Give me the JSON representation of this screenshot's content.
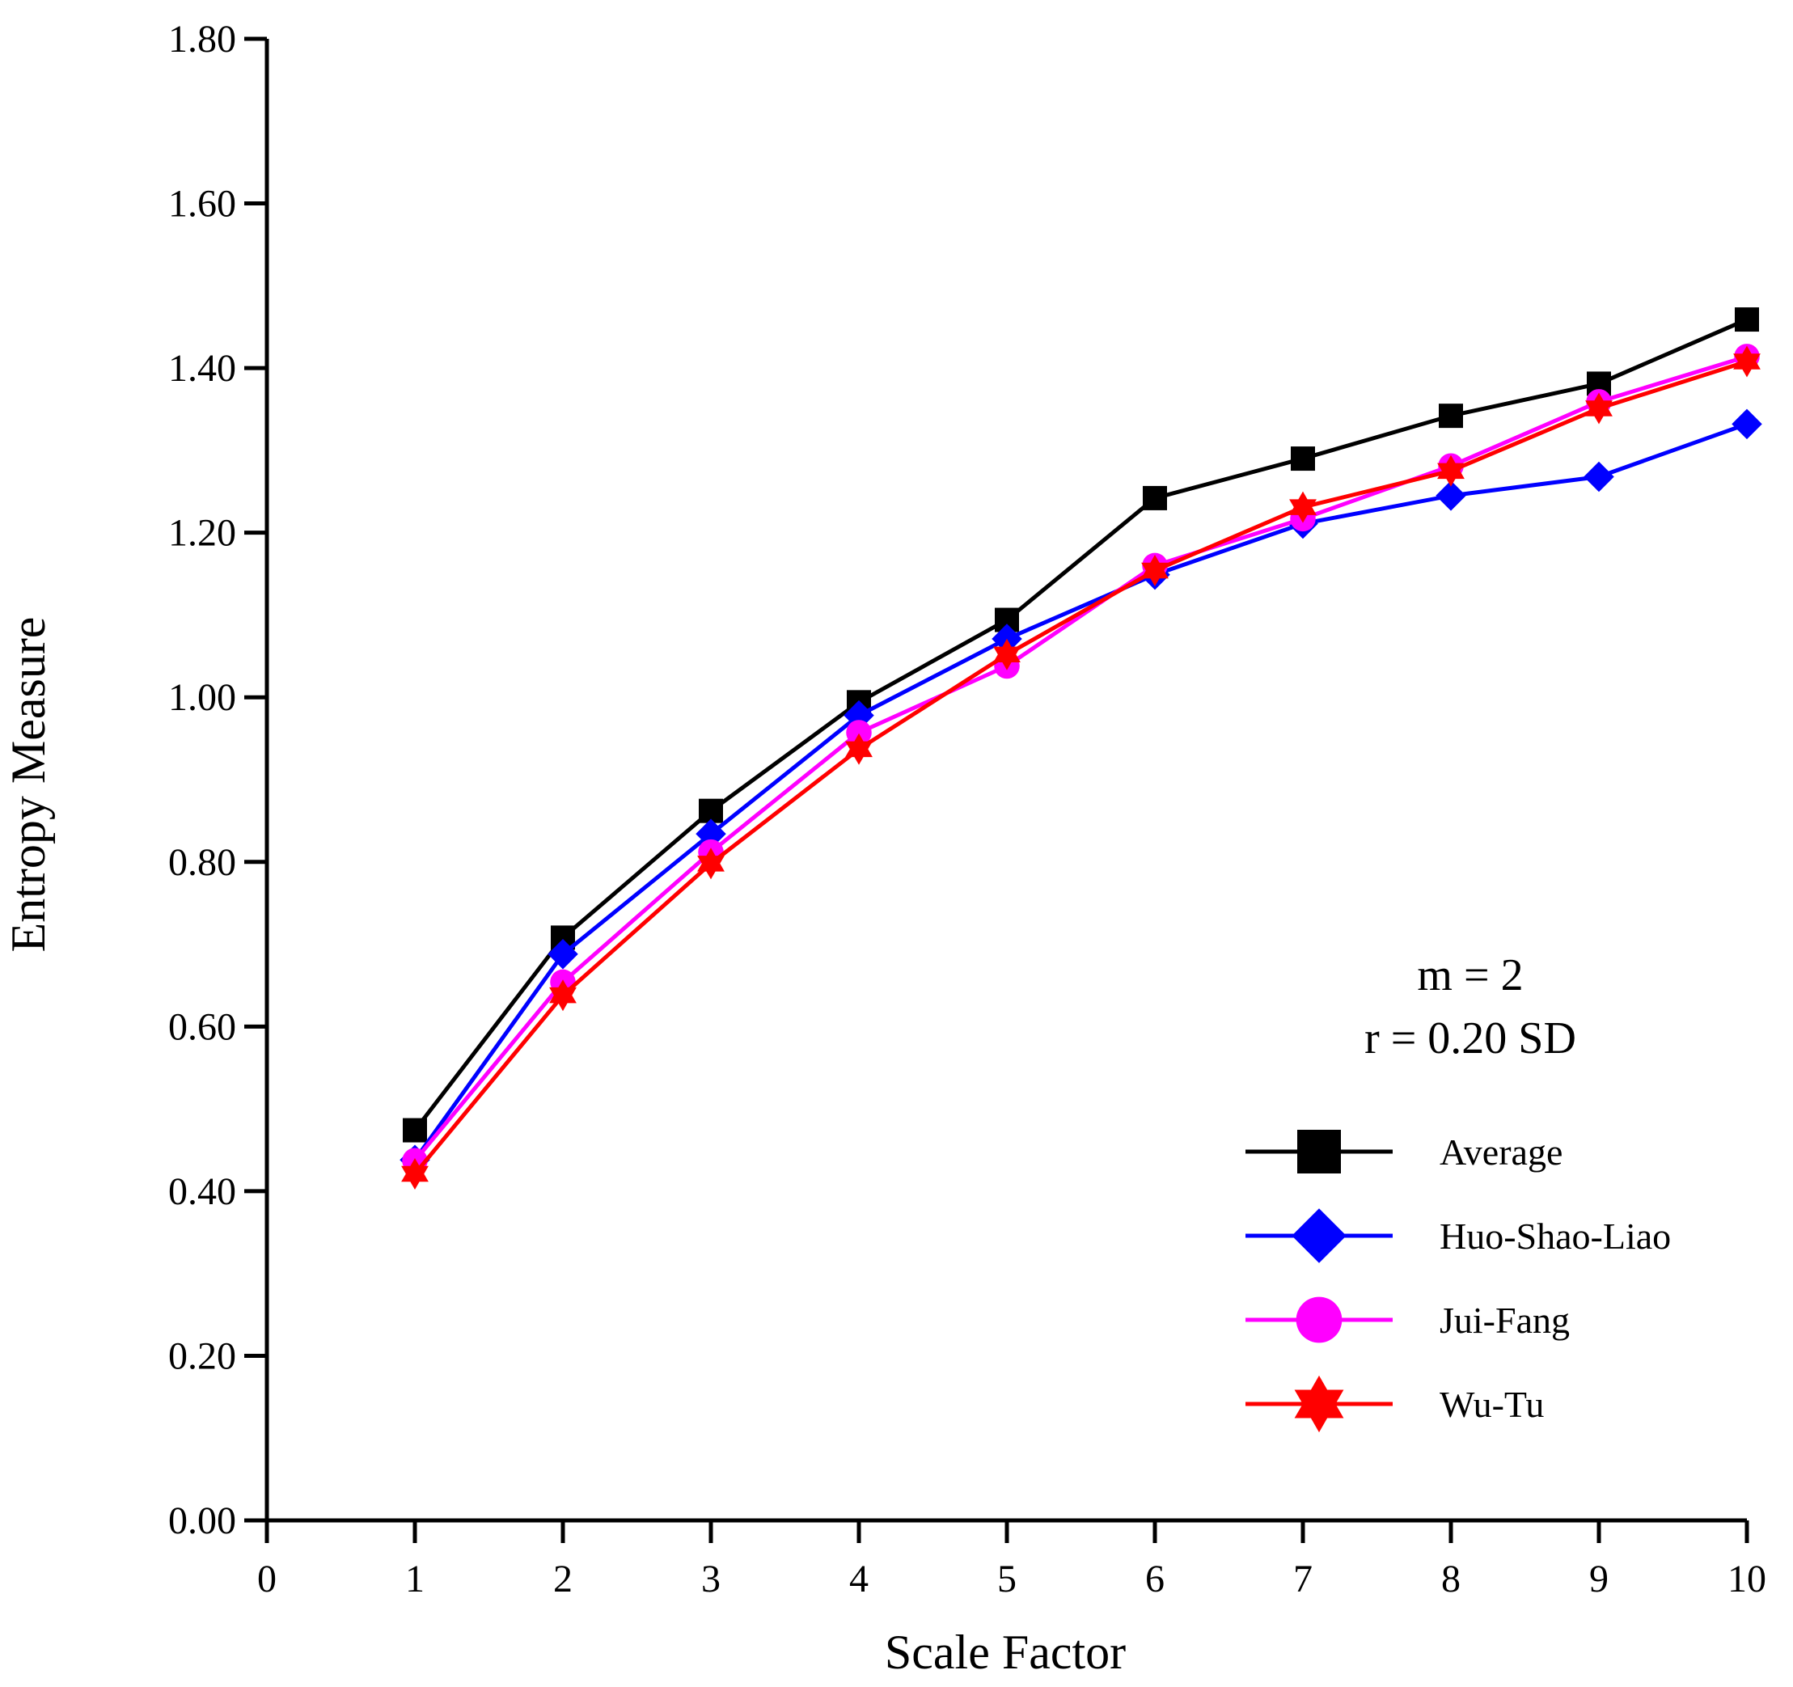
{
  "chart_data": {
    "type": "line",
    "title": "",
    "xlabel": "Scale Factor",
    "ylabel": "Entropy Measure",
    "xlim": [
      0,
      10
    ],
    "ylim": [
      0,
      1.8
    ],
    "xticks": [
      "0",
      "1",
      "2",
      "3",
      "4",
      "5",
      "6",
      "7",
      "8",
      "9",
      "10"
    ],
    "yticks": [
      "0.00",
      "0.20",
      "0.40",
      "0.60",
      "0.80",
      "1.00",
      "1.20",
      "1.40",
      "1.60",
      "1.80"
    ],
    "x": [
      1,
      2,
      3,
      4,
      5,
      6,
      7,
      8,
      9,
      10
    ],
    "annotations": [
      "m = 2",
      "r = 0.20 SD"
    ],
    "legend_position": "bottom-right",
    "series": [
      {
        "name": "Average",
        "color": "#000000",
        "marker": "square",
        "values": [
          0.474,
          0.708,
          0.862,
          0.994,
          1.094,
          1.242,
          1.29,
          1.342,
          1.381,
          1.459
        ]
      },
      {
        "name": "Huo-Shao-Liao",
        "color": "#0000ff",
        "marker": "diamond",
        "values": [
          0.438,
          0.688,
          0.834,
          0.978,
          1.071,
          1.149,
          1.211,
          1.245,
          1.268,
          1.332
        ]
      },
      {
        "name": "Jui-Fang",
        "color": "#ff00ff",
        "marker": "circle",
        "values": [
          0.437,
          0.654,
          0.812,
          0.957,
          1.038,
          1.16,
          1.217,
          1.281,
          1.359,
          1.414
        ]
      },
      {
        "name": "Wu-Tu",
        "color": "#ff0000",
        "marker": "star",
        "values": [
          0.421,
          0.638,
          0.798,
          0.937,
          1.052,
          1.154,
          1.231,
          1.275,
          1.351,
          1.408
        ]
      }
    ]
  }
}
